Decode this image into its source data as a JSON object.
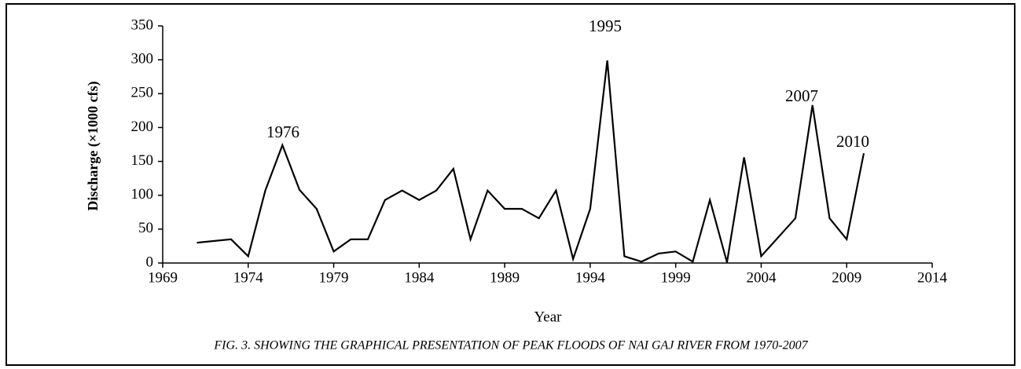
{
  "chart_data": {
    "type": "line",
    "y_axis_label": "Discharge (×1000 cfs)",
    "x_axis_label": "Year",
    "caption": "FIG. 3.  SHOWING THE GRAPHICAL PRESENTATION OF PEAK FLOODS OF NAI GAJ RIVER FROM 1970-2007",
    "annotations": [
      "1976",
      "1995",
      "2007",
      "2010"
    ],
    "x": [
      1971,
      1973,
      1974,
      1975,
      1976,
      1977,
      1978,
      1979,
      1980,
      1981,
      1982,
      1983,
      1984,
      1985,
      1986,
      1987,
      1988,
      1989,
      1990,
      1991,
      1992,
      1993,
      1994,
      1995,
      1996,
      1997,
      1998,
      1999,
      2000,
      2001,
      2002,
      2003,
      2004,
      2006,
      2007,
      2008,
      2009,
      2010
    ],
    "values": [
      30,
      35,
      10,
      107,
      174,
      108,
      80,
      17,
      35,
      35,
      93,
      107,
      93,
      107,
      139,
      35,
      107,
      80,
      80,
      66,
      107,
      6,
      80,
      299,
      10,
      2,
      14,
      17,
      2,
      93,
      1,
      156,
      10,
      66,
      233,
      66,
      35,
      162
    ],
    "color": "#000000",
    "xlim": [
      1969,
      2014
    ],
    "xticks": [
      1969,
      1974,
      1979,
      1984,
      1989,
      1994,
      1999,
      2004,
      2009,
      2014
    ],
    "ylim": [
      0,
      350
    ],
    "yticks": [
      0,
      50,
      100,
      150,
      200,
      250,
      300,
      350
    ],
    "grid": false
  }
}
